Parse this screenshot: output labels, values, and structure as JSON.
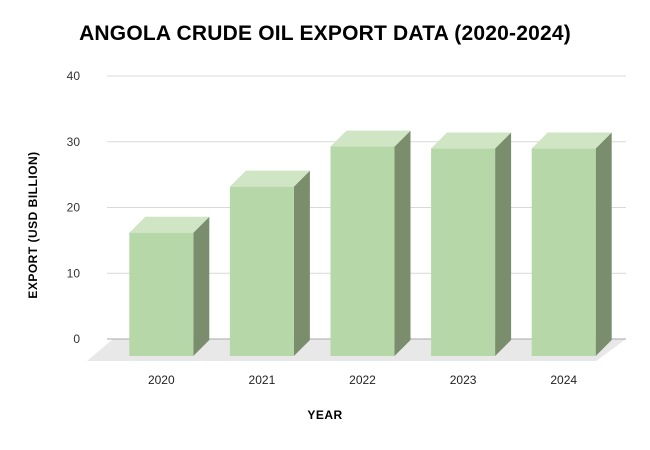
{
  "chart_data": {
    "type": "bar",
    "title": "ANGOLA CRUDE OIL EXPORT DATA (2020-2024)",
    "xlabel": "YEAR",
    "ylabel": "EXPORT (USD BILLION)",
    "categories": [
      "2020",
      "2021",
      "2022",
      "2023",
      "2024"
    ],
    "values": [
      18.6,
      25.6,
      31.7,
      31.4,
      31.4
    ],
    "ylim": [
      0,
      40
    ],
    "yticks": [
      0,
      10,
      20,
      30,
      40
    ],
    "grid": true,
    "style": "3d-column",
    "colors": {
      "bar_front": "#b6d7a8",
      "bar_top": "#cfe5c4",
      "bar_side": "#7a8e6d",
      "floor": "#e8e8e8",
      "grid": "#d9d9d9"
    }
  }
}
